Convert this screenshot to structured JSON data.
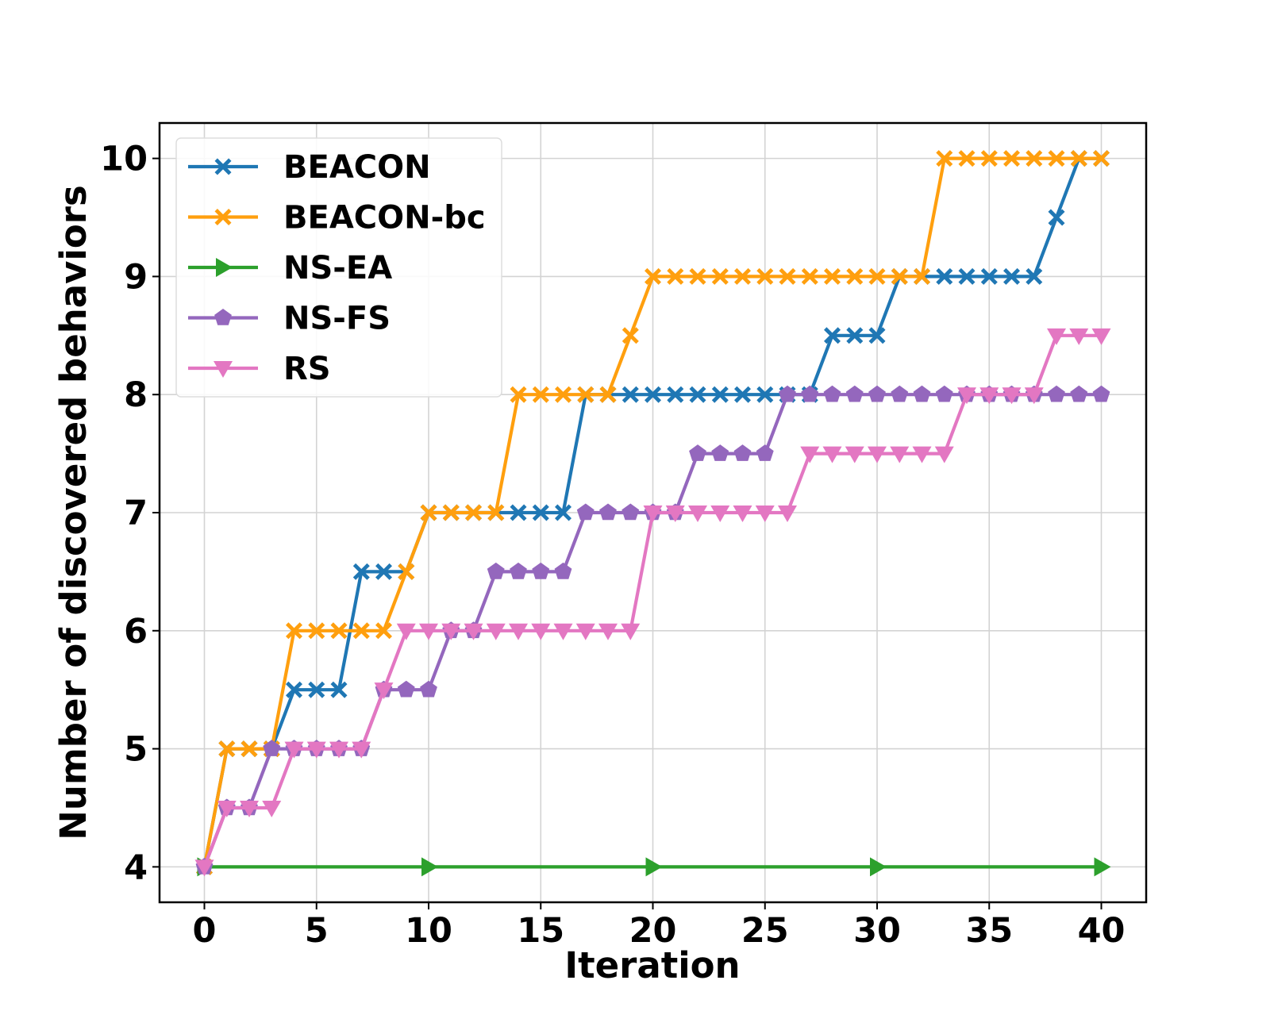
{
  "chart_data": {
    "type": "line",
    "title": "",
    "xlabel": "Iteration",
    "ylabel": "Number of discovered behaviors",
    "xlim": [
      -2,
      42
    ],
    "ylim": [
      3.7,
      10.3
    ],
    "xticks": [
      0,
      5,
      10,
      15,
      20,
      25,
      30,
      35,
      40
    ],
    "xtick_labels": [
      "0",
      "5",
      "10",
      "15",
      "20",
      "25",
      "30",
      "35",
      "40"
    ],
    "yticks": [
      4,
      5,
      6,
      7,
      8,
      9,
      10
    ],
    "ytick_labels": [
      "4",
      "5",
      "6",
      "7",
      "8",
      "9",
      "10"
    ],
    "grid": true,
    "legend_position": "top-left",
    "series": [
      {
        "name": "BEACON",
        "color": "#1f77b4",
        "marker": "x-filled",
        "x": [
          0,
          1,
          2,
          3,
          4,
          5,
          6,
          7,
          8,
          9,
          10,
          11,
          12,
          13,
          14,
          15,
          16,
          17,
          18,
          19,
          20,
          21,
          22,
          23,
          24,
          25,
          26,
          27,
          28,
          29,
          30,
          31,
          32,
          33,
          34,
          35,
          36,
          37,
          38,
          39,
          40
        ],
        "values": [
          4,
          5,
          5,
          5,
          5.5,
          5.5,
          5.5,
          6.5,
          6.5,
          6.5,
          7,
          7,
          7,
          7,
          7,
          7,
          7,
          8,
          8,
          8,
          8,
          8,
          8,
          8,
          8,
          8,
          8,
          8,
          8.5,
          8.5,
          8.5,
          9,
          9,
          9,
          9,
          9,
          9,
          9,
          9.5,
          10,
          10
        ]
      },
      {
        "name": "BEACON-bc",
        "color": "#ff9f0e",
        "marker": "x-filled",
        "x": [
          0,
          1,
          2,
          3,
          4,
          5,
          6,
          7,
          8,
          9,
          10,
          11,
          12,
          13,
          14,
          15,
          16,
          17,
          18,
          19,
          20,
          21,
          22,
          23,
          24,
          25,
          26,
          27,
          28,
          29,
          30,
          31,
          32,
          33,
          34,
          35,
          36,
          37,
          38,
          39,
          40
        ],
        "values": [
          4,
          5,
          5,
          5,
          6,
          6,
          6,
          6,
          6,
          6.5,
          7,
          7,
          7,
          7,
          8,
          8,
          8,
          8,
          8,
          8.5,
          9,
          9,
          9,
          9,
          9,
          9,
          9,
          9,
          9,
          9,
          9,
          9,
          9,
          10,
          10,
          10,
          10,
          10,
          10,
          10,
          10
        ]
      },
      {
        "name": "NS-EA",
        "color": "#2ca02c",
        "marker": "triangle-right",
        "x": [
          0,
          1,
          2,
          3,
          4,
          5,
          6,
          7,
          8,
          9,
          10,
          11,
          12,
          13,
          14,
          15,
          16,
          17,
          18,
          19,
          20,
          21,
          22,
          23,
          24,
          25,
          26,
          27,
          28,
          29,
          30,
          31,
          32,
          33,
          34,
          35,
          36,
          37,
          38,
          39,
          40
        ],
        "values": [
          4,
          4,
          4,
          4,
          4,
          4,
          4,
          4,
          4,
          4,
          4,
          4,
          4,
          4,
          4,
          4,
          4,
          4,
          4,
          4,
          4,
          4,
          4,
          4,
          4,
          4,
          4,
          4,
          4,
          4,
          4,
          4,
          4,
          4,
          4,
          4,
          4,
          4,
          4,
          4,
          4
        ],
        "marker_x": [
          0,
          10,
          20,
          30,
          40
        ]
      },
      {
        "name": "NS-FS",
        "color": "#9467bd",
        "marker": "pentagon",
        "x": [
          0,
          1,
          2,
          3,
          4,
          5,
          6,
          7,
          8,
          9,
          10,
          11,
          12,
          13,
          14,
          15,
          16,
          17,
          18,
          19,
          20,
          21,
          22,
          23,
          24,
          25,
          26,
          27,
          28,
          29,
          30,
          31,
          32,
          33,
          34,
          35,
          36,
          37,
          38,
          39,
          40
        ],
        "values": [
          4,
          4.5,
          4.5,
          5,
          5,
          5,
          5,
          5,
          5.5,
          5.5,
          5.5,
          6,
          6,
          6.5,
          6.5,
          6.5,
          6.5,
          7,
          7,
          7,
          7,
          7,
          7.5,
          7.5,
          7.5,
          7.5,
          8,
          8,
          8,
          8,
          8,
          8,
          8,
          8,
          8,
          8,
          8,
          8,
          8,
          8,
          8
        ]
      },
      {
        "name": "RS",
        "color": "#e377c2",
        "marker": "triangle-down",
        "x": [
          0,
          1,
          2,
          3,
          4,
          5,
          6,
          7,
          8,
          9,
          10,
          11,
          12,
          13,
          14,
          15,
          16,
          17,
          18,
          19,
          20,
          21,
          22,
          23,
          24,
          25,
          26,
          27,
          28,
          29,
          30,
          31,
          32,
          33,
          34,
          35,
          36,
          37,
          38,
          39,
          40
        ],
        "values": [
          4,
          4.5,
          4.5,
          4.5,
          5,
          5,
          5,
          5,
          5.5,
          6,
          6,
          6,
          6,
          6,
          6,
          6,
          6,
          6,
          6,
          6,
          7,
          7,
          7,
          7,
          7,
          7,
          7,
          7.5,
          7.5,
          7.5,
          7.5,
          7.5,
          7.5,
          7.5,
          8,
          8,
          8,
          8,
          8.5,
          8.5,
          8.5
        ]
      }
    ]
  }
}
